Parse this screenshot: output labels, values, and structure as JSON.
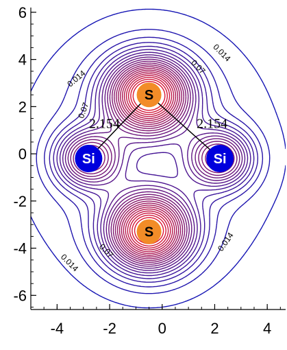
{
  "chart_data": {
    "type": "contour",
    "title": "",
    "xlabel": "",
    "ylabel": "",
    "xlim": [
      -5,
      4.7
    ],
    "ylim": [
      -6.6,
      6.2
    ],
    "x_ticks": [
      -4,
      -2,
      0,
      2,
      4
    ],
    "y_ticks": [
      6,
      4,
      2,
      0,
      -2,
      -4,
      -6
    ],
    "x_tick_labels": [
      "-4",
      "-2",
      "0",
      "2",
      "4"
    ],
    "y_tick_labels": [
      "6",
      "4",
      "2",
      "0",
      "-2",
      "-4",
      "-6"
    ],
    "colors": {
      "outer": "#1a1ab3",
      "inner": "#d01030",
      "si_fill": "#0000dd",
      "s_fill": "#f28c28"
    },
    "atoms": [
      {
        "symbol": "S",
        "x": -0.5,
        "y": 2.5,
        "color": "#f28c28",
        "text_color": "#000000"
      },
      {
        "symbol": "S",
        "x": -0.5,
        "y": -3.3,
        "color": "#f28c28",
        "text_color": "#000000"
      },
      {
        "symbol": "Si",
        "x": -2.8,
        "y": -0.2,
        "color": "#0000dd",
        "text_color": "#ffffff"
      },
      {
        "symbol": "Si",
        "x": 2.2,
        "y": -0.2,
        "color": "#0000dd",
        "text_color": "#ffffff"
      }
    ],
    "bonds": [
      {
        "from": 0,
        "to": 2,
        "label": "2.154",
        "label_x": -2.2,
        "label_y": 1.1
      },
      {
        "from": 0,
        "to": 3,
        "label": "2.154",
        "label_x": 1.9,
        "label_y": 1.1
      }
    ],
    "contour_labels": [
      {
        "text": "0.014",
        "x": 2.2,
        "y": 4.2,
        "angle": 45
      },
      {
        "text": "0.07",
        "x": 1.3,
        "y": 3.6,
        "angle": 45
      },
      {
        "text": "0.014",
        "x": -3.2,
        "y": 3.1,
        "angle": -40
      },
      {
        "text": "0.07",
        "x": -2.9,
        "y": 1.8,
        "angle": -70
      },
      {
        "text": "0.014",
        "x": -3.6,
        "y": -4.7,
        "angle": 45
      },
      {
        "text": "0.07",
        "x": -2.2,
        "y": -4.2,
        "angle": 45
      },
      {
        "text": "0.014",
        "x": 2.5,
        "y": -3.8,
        "angle": -55
      }
    ]
  }
}
